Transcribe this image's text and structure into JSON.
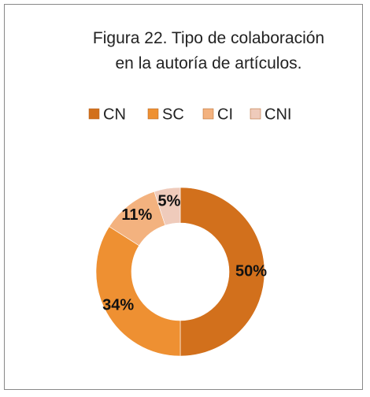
{
  "chart_data": {
    "type": "donut",
    "title": "Figura 22. Tipo de colaboración en la autoría de artículos.",
    "categories": [
      "CN",
      "SC",
      "CI",
      "CNI"
    ],
    "values": [
      50,
      34,
      11,
      5
    ],
    "value_labels": [
      "50%",
      "34%",
      "11%",
      "5%"
    ],
    "colors": [
      "#d2701c",
      "#ee9032",
      "#f3b27f",
      "#efcbbb"
    ],
    "legend": "top"
  }
}
